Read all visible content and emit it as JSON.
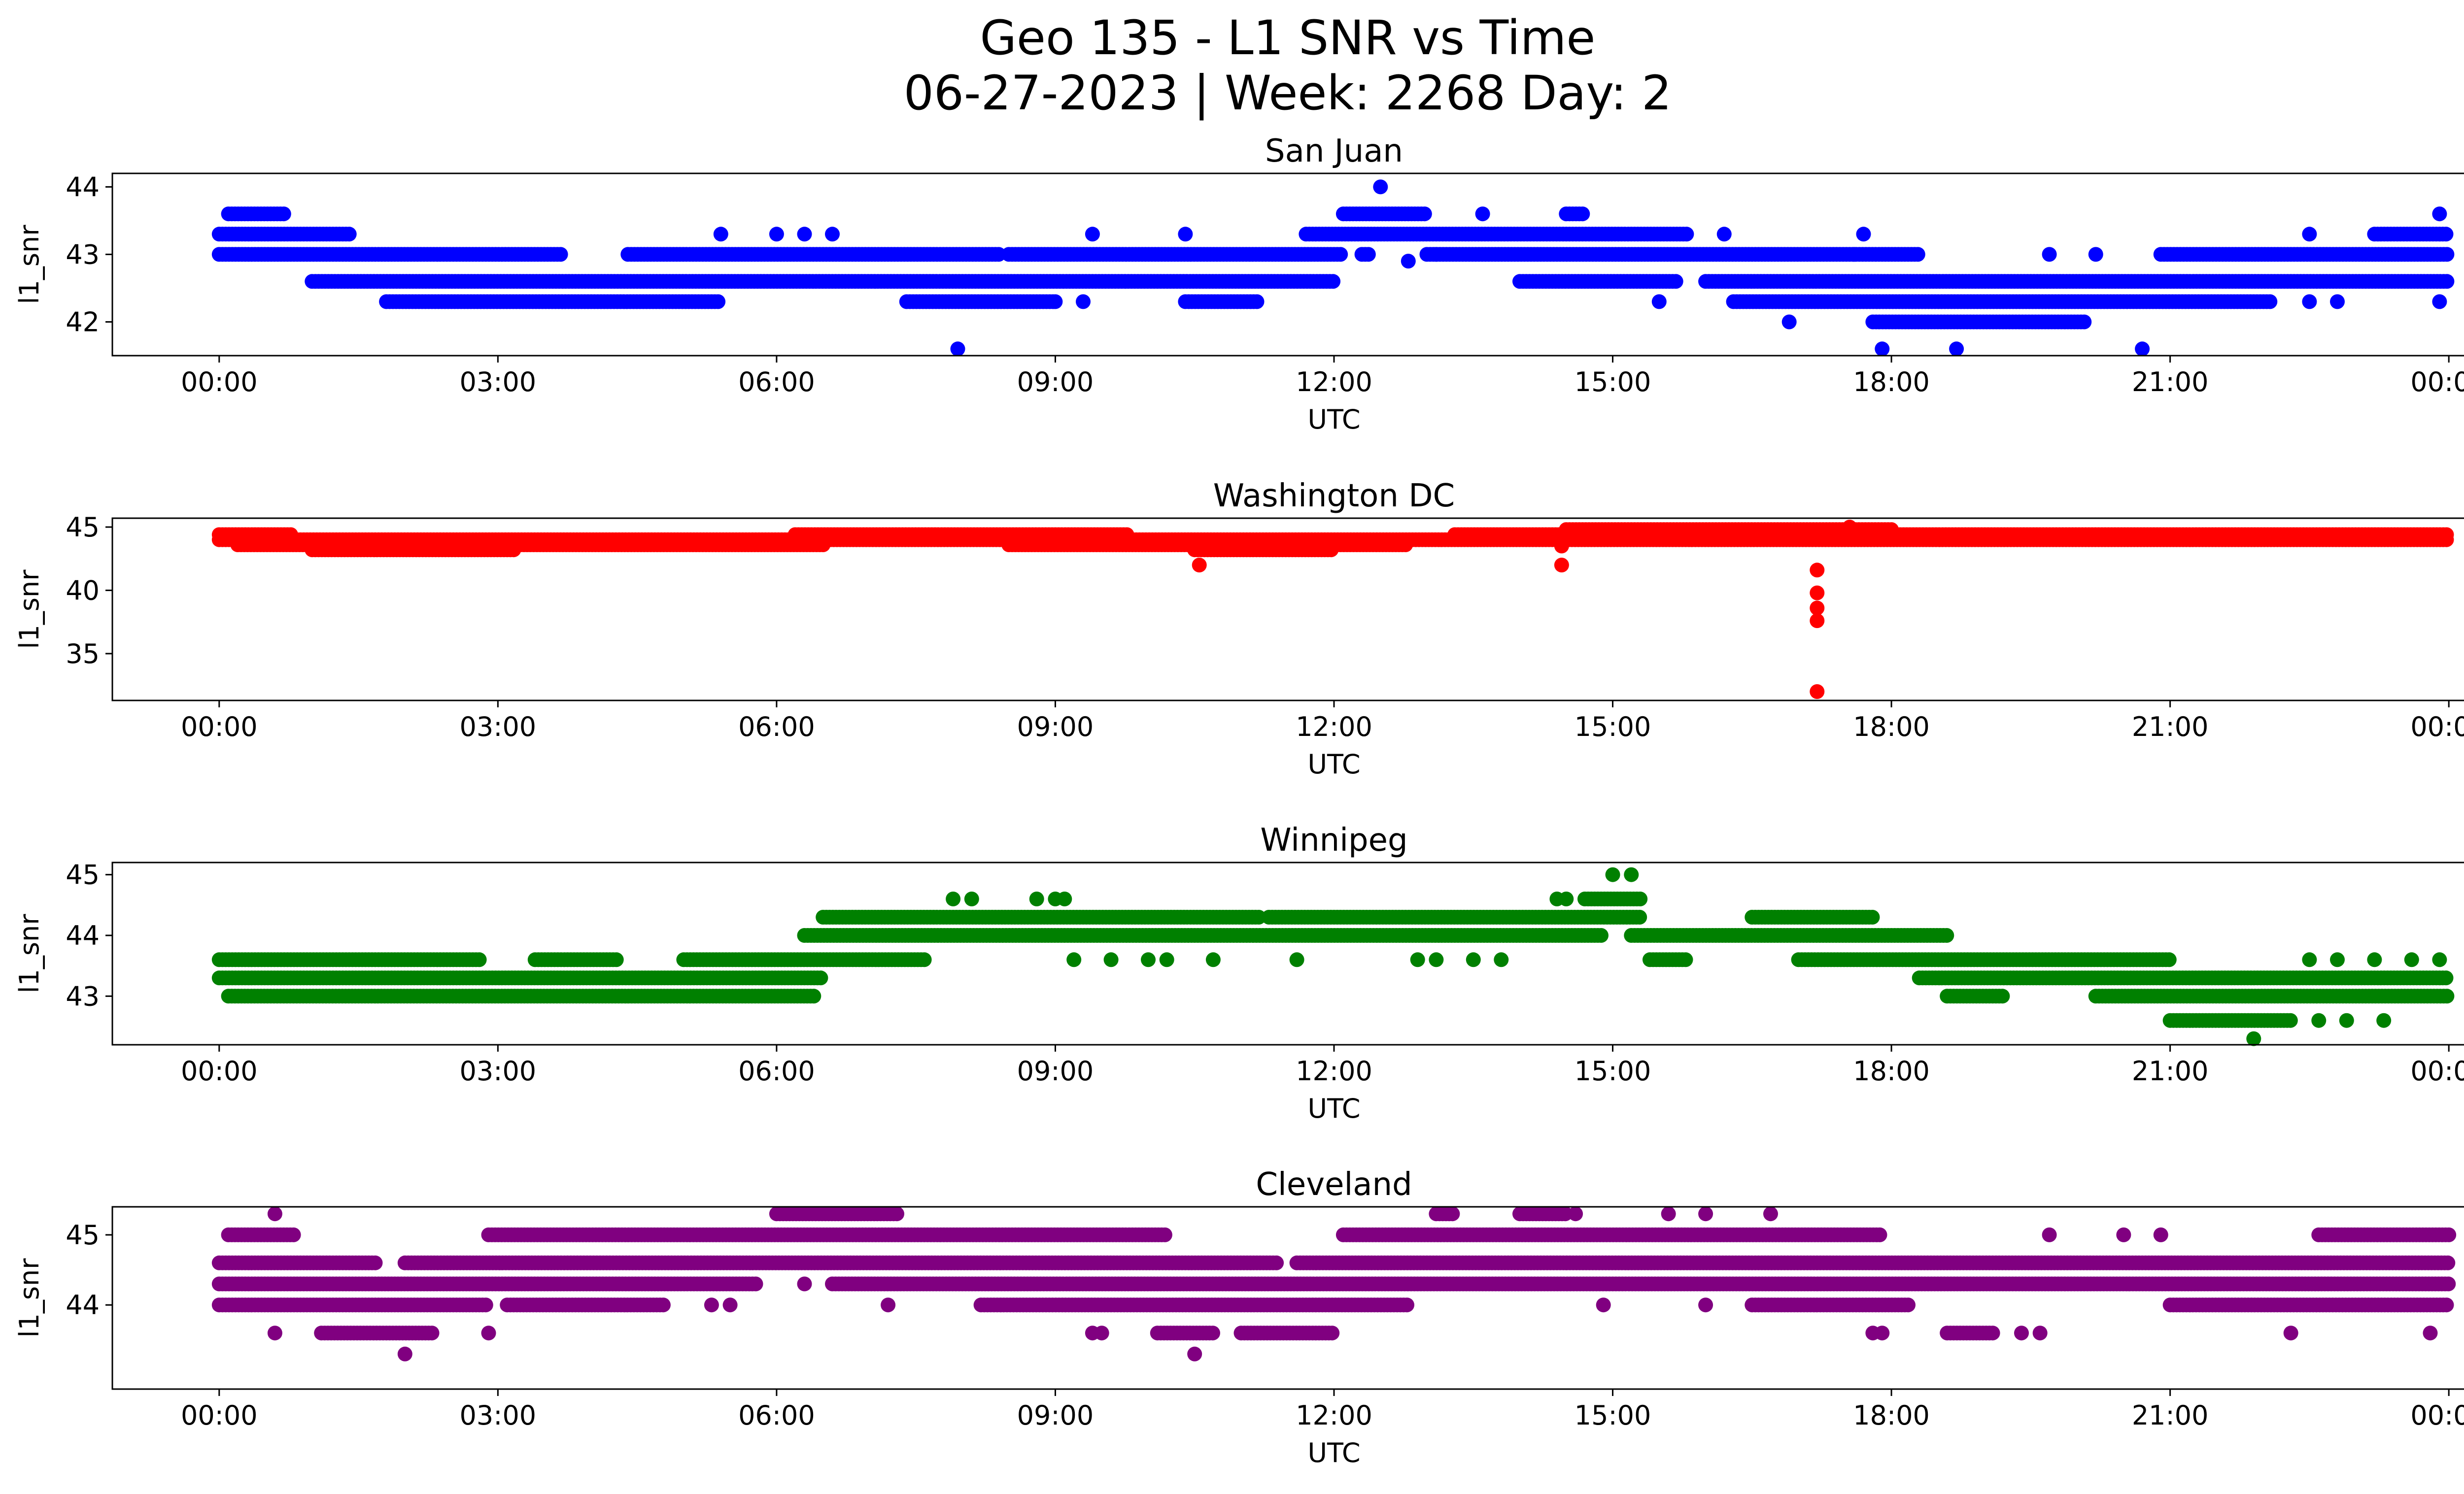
{
  "figure": {
    "title_line1": "Geo 135 - L1 SNR vs Time",
    "title_line2": "06-27-2023 | Week: 2268 Day: 2"
  },
  "chart_data": [
    {
      "type": "scatter",
      "title": "San Juan",
      "xlabel": "UTC",
      "ylabel": "l1_snr",
      "color": "#0000ff",
      "x_ticks": [
        "00:00",
        "03:00",
        "06:00",
        "09:00",
        "12:00",
        "15:00",
        "18:00",
        "21:00",
        "00:00"
      ],
      "xlim_hours": [
        -1.15,
        25.15
      ],
      "ylim": [
        41.5,
        44.2
      ],
      "y_ticks": [
        42,
        43,
        44
      ],
      "bands": [
        {
          "y": 43.0,
          "segments": [
            [
              0,
              3.7
            ],
            [
              4.4,
              8.4
            ],
            [
              8.5,
              12.1
            ],
            [
              12.3,
              12.4
            ],
            [
              13.0,
              18.3
            ],
            [
              20.9,
              24
            ]
          ]
        },
        {
          "y": 43.3,
          "segments": [
            [
              0,
              1.4
            ],
            [
              11.7,
              15.8
            ],
            [
              23.2,
              24
            ]
          ]
        },
        {
          "y": 43.6,
          "segments": [
            [
              0.1,
              0.7
            ],
            [
              12.1,
              13.0
            ],
            [
              14.5,
              14.7
            ]
          ]
        },
        {
          "y": 42.6,
          "segments": [
            [
              1.0,
              12.0
            ],
            [
              14.0,
              15.7
            ],
            [
              16.0,
              24
            ]
          ]
        },
        {
          "y": 42.3,
          "segments": [
            [
              1.8,
              5.4
            ],
            [
              7.4,
              9.0
            ],
            [
              10.4,
              11.2
            ],
            [
              16.3,
              22.1
            ]
          ]
        },
        {
          "y": 42.0,
          "segments": [
            [
              17.8,
              20.1
            ]
          ]
        }
      ],
      "points": [
        [
          7.95,
          41.6
        ],
        [
          5.4,
          43.3
        ],
        [
          6.0,
          43.3
        ],
        [
          6.3,
          43.3
        ],
        [
          6.6,
          43.3
        ],
        [
          9.4,
          43.3
        ],
        [
          10.4,
          43.3
        ],
        [
          12.5,
          44.0
        ],
        [
          13.6,
          43.6
        ],
        [
          12.8,
          42.9
        ],
        [
          13.1,
          43.0
        ],
        [
          9.0,
          42.3
        ],
        [
          9.3,
          42.3
        ],
        [
          15.5,
          42.3
        ],
        [
          16.9,
          42.0
        ],
        [
          17.9,
          41.6
        ],
        [
          18.7,
          41.6
        ],
        [
          20.7,
          41.6
        ],
        [
          16.2,
          43.3
        ],
        [
          17.6,
          43.0
        ],
        [
          17.7,
          43.3
        ],
        [
          19.7,
          43.0
        ],
        [
          20.2,
          43.0
        ],
        [
          22.5,
          42.3
        ],
        [
          22.8,
          42.3
        ],
        [
          22.5,
          43.3
        ],
        [
          23.9,
          43.6
        ],
        [
          23.9,
          42.3
        ]
      ]
    },
    {
      "type": "scatter",
      "title": "Washington DC",
      "xlabel": "UTC",
      "ylabel": "l1_snr",
      "color": "#ff0000",
      "x_ticks": [
        "00:00",
        "03:00",
        "06:00",
        "09:00",
        "12:00",
        "15:00",
        "18:00",
        "21:00",
        "00:00"
      ],
      "xlim_hours": [
        -1.15,
        25.15
      ],
      "ylim": [
        31.3,
        45.7
      ],
      "y_ticks": [
        35,
        40,
        45
      ],
      "bands": [
        {
          "y": 44.4,
          "segments": [
            [
              0,
              0.8
            ],
            [
              6.2,
              9.8
            ],
            [
              13.3,
              24
            ]
          ]
        },
        {
          "y": 44.0,
          "segments": [
            [
              0,
              24
            ]
          ]
        },
        {
          "y": 43.6,
          "segments": [
            [
              0.2,
              6.5
            ],
            [
              8.5,
              12.8
            ]
          ]
        },
        {
          "y": 43.2,
          "segments": [
            [
              1.0,
              3.2
            ],
            [
              10.5,
              12.0
            ]
          ]
        },
        {
          "y": 44.8,
          "segments": [
            [
              14.5,
              18.0
            ]
          ]
        }
      ],
      "points": [
        [
          10.55,
          42.0
        ],
        [
          14.45,
          42.0
        ],
        [
          14.45,
          43.5
        ],
        [
          17.2,
          41.6
        ],
        [
          17.2,
          39.8
        ],
        [
          17.2,
          38.6
        ],
        [
          17.2,
          37.6
        ],
        [
          17.2,
          32.0
        ],
        [
          17.55,
          45.0
        ]
      ]
    },
    {
      "type": "scatter",
      "title": "Winnipeg",
      "xlabel": "UTC",
      "ylabel": "l1_snr",
      "color": "#008000",
      "x_ticks": [
        "00:00",
        "03:00",
        "06:00",
        "09:00",
        "12:00",
        "15:00",
        "18:00",
        "21:00",
        "00:00"
      ],
      "xlim_hours": [
        -1.15,
        25.15
      ],
      "ylim": [
        42.2,
        45.2
      ],
      "y_ticks": [
        43,
        44,
        45
      ],
      "bands": [
        {
          "y": 43.3,
          "segments": [
            [
              0,
              6.5
            ],
            [
              18.3,
              24
            ]
          ]
        },
        {
          "y": 43.0,
          "segments": [
            [
              0.1,
              6.4
            ],
            [
              18.6,
              19.2
            ],
            [
              20.2,
              24
            ]
          ]
        },
        {
          "y": 43.6,
          "segments": [
            [
              0,
              2.8
            ],
            [
              3.4,
              4.3
            ],
            [
              5.0,
              7.6
            ],
            [
              15.4,
              15.8
            ],
            [
              17.0,
              21.0
            ]
          ]
        },
        {
          "y": 44.0,
          "segments": [
            [
              6.3,
              14.9
            ],
            [
              15.2,
              18.6
            ]
          ]
        },
        {
          "y": 44.3,
          "segments": [
            [
              6.5,
              11.2
            ],
            [
              11.3,
              15.3
            ],
            [
              16.5,
              17.8
            ]
          ]
        },
        {
          "y": 44.6,
          "segments": [
            [
              14.7,
              15.3
            ]
          ]
        },
        {
          "y": 42.6,
          "segments": [
            [
              21.0,
              22.3
            ]
          ]
        }
      ],
      "points": [
        [
          7.9,
          44.6
        ],
        [
          8.1,
          44.6
        ],
        [
          8.8,
          44.6
        ],
        [
          9.0,
          44.6
        ],
        [
          9.1,
          44.6
        ],
        [
          9.2,
          43.6
        ],
        [
          9.6,
          43.6
        ],
        [
          10.0,
          43.6
        ],
        [
          10.2,
          43.6
        ],
        [
          10.7,
          43.6
        ],
        [
          11.6,
          43.6
        ],
        [
          12.9,
          43.6
        ],
        [
          13.1,
          43.6
        ],
        [
          13.5,
          43.6
        ],
        [
          13.8,
          43.6
        ],
        [
          14.4,
          44.6
        ],
        [
          14.5,
          44.6
        ],
        [
          15.0,
          45.0
        ],
        [
          15.2,
          45.0
        ],
        [
          21.9,
          42.3
        ],
        [
          22.6,
          42.6
        ],
        [
          22.9,
          42.6
        ],
        [
          23.3,
          42.6
        ],
        [
          22.5,
          43.6
        ],
        [
          22.8,
          43.6
        ],
        [
          23.2,
          43.6
        ],
        [
          23.6,
          43.6
        ],
        [
          23.9,
          43.6
        ]
      ]
    },
    {
      "type": "scatter",
      "title": "Cleveland",
      "xlabel": "UTC",
      "ylabel": "l1_snr",
      "color": "#800080",
      "x_ticks": [
        "00:00",
        "03:00",
        "06:00",
        "09:00",
        "12:00",
        "15:00",
        "18:00",
        "21:00",
        "00:00"
      ],
      "xlim_hours": [
        -1.15,
        25.15
      ],
      "ylim": [
        42.8,
        45.4
      ],
      "y_ticks": [
        44,
        45
      ],
      "bands": [
        {
          "y": 44.6,
          "segments": [
            [
              0,
              1.7
            ],
            [
              2.0,
              11.4
            ],
            [
              11.6,
              24
            ]
          ]
        },
        {
          "y": 44.3,
          "segments": [
            [
              0,
              5.8
            ],
            [
              6.6,
              24
            ]
          ]
        },
        {
          "y": 44.0,
          "segments": [
            [
              0,
              2.9
            ],
            [
              3.1,
              4.8
            ],
            [
              8.2,
              12.8
            ],
            [
              16.5,
              18.2
            ],
            [
              21.0,
              24
            ]
          ]
        },
        {
          "y": 45.0,
          "segments": [
            [
              0.1,
              0.8
            ],
            [
              2.9,
              10.2
            ],
            [
              12.1,
              17.9
            ],
            [
              22.6,
              24
            ]
          ]
        },
        {
          "y": 43.6,
          "segments": [
            [
              1.1,
              2.3
            ],
            [
              10.1,
              10.7
            ],
            [
              11.0,
              12.0
            ],
            [
              18.6,
              19.1
            ]
          ]
        },
        {
          "y": 45.3,
          "segments": [
            [
              6.0,
              7.3
            ],
            [
              13.1,
              13.3
            ],
            [
              14.0,
              14.5
            ]
          ]
        }
      ],
      "points": [
        [
          0.6,
          45.3
        ],
        [
          0.6,
          43.6
        ],
        [
          2.0,
          43.3
        ],
        [
          2.9,
          43.6
        ],
        [
          10.5,
          43.3
        ],
        [
          9.4,
          43.6
        ],
        [
          9.5,
          43.6
        ],
        [
          5.3,
          44.0
        ],
        [
          5.5,
          44.0
        ],
        [
          7.2,
          44.0
        ],
        [
          6.3,
          44.3
        ],
        [
          14.6,
          45.3
        ],
        [
          14.9,
          44.0
        ],
        [
          15.6,
          45.3
        ],
        [
          16.0,
          45.3
        ],
        [
          16.7,
          45.3
        ],
        [
          16.0,
          44.0
        ],
        [
          17.8,
          43.6
        ],
        [
          17.9,
          43.6
        ],
        [
          19.4,
          43.6
        ],
        [
          19.6,
          43.6
        ],
        [
          19.7,
          45.0
        ],
        [
          20.5,
          45.0
        ],
        [
          20.9,
          45.0
        ],
        [
          22.3,
          43.6
        ],
        [
          23.8,
          43.6
        ]
      ]
    }
  ]
}
